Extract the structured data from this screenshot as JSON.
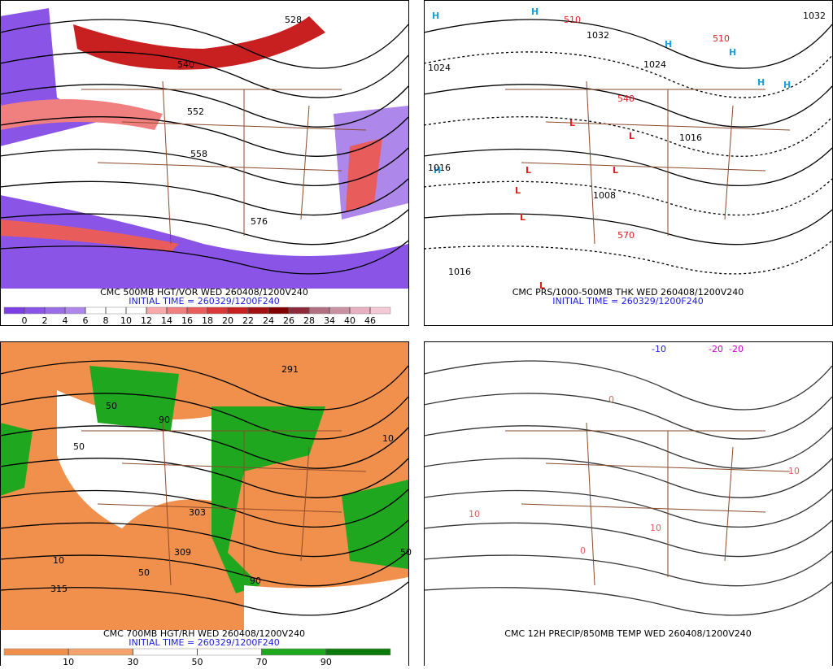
{
  "panels": [
    {
      "caption": "CMC 500MB HGT/VOR WED 260408/1200V240",
      "initial": "INITIAL TIME = 260329/1200F240",
      "labels": [
        "528",
        "540",
        "552",
        "558",
        "576"
      ],
      "colorbar": {
        "ticks": [
          0,
          2,
          4,
          6,
          8,
          10,
          12,
          14,
          16,
          18,
          20,
          22,
          24,
          26,
          28,
          34,
          40,
          46
        ],
        "colors": [
          "#7b3fe4",
          "#8a55e6",
          "#9a6ce8",
          "#ad88ea",
          "#ffffff",
          "#ffffff",
          "#ffffff",
          "#f7a8a8",
          "#f08080",
          "#e85c5c",
          "#d83838",
          "#c82020",
          "#a01010",
          "#800000",
          "#8c2a3a",
          "#b07080",
          "#c890a0",
          "#e8b0c0",
          "#f4c8d4"
        ]
      }
    },
    {
      "caption": "CMC PRS/1000-500MB THK WED 260408/1200V240",
      "initial": "INITIAL TIME = 260329/1200F240",
      "labels": [
        "H",
        "H",
        "H",
        "H",
        "H",
        "H",
        "H",
        "L",
        "L",
        "L",
        "L",
        "L",
        "L",
        "L",
        "1032",
        "1024",
        "1024",
        "1016",
        "1016",
        "1008",
        "1032",
        "510",
        "510",
        "540",
        "570",
        "1016"
      ]
    },
    {
      "caption": "CMC 700MB HGT/RH WED 260408/1200V240",
      "initial": "INITIAL TIME = 260329/1200F240",
      "labels": [
        "291",
        "50",
        "90",
        "50",
        "303",
        "309",
        "315",
        "10",
        "50",
        "90",
        "10",
        "50"
      ],
      "colorbar": {
        "ticks": [
          10,
          30,
          50,
          70,
          90
        ],
        "colors": [
          "#f0904c",
          "#f4a46a",
          "#ffffff",
          "#ffffff",
          "#1fa81f",
          "#0a7a0a"
        ]
      }
    },
    {
      "caption": "CMC 12H PRECIP/850MB TEMP WED 260408/1200V240",
      "labels": [
        "-10",
        "-20",
        "-20",
        "0",
        "10",
        "10",
        "10",
        "0"
      ]
    }
  ]
}
